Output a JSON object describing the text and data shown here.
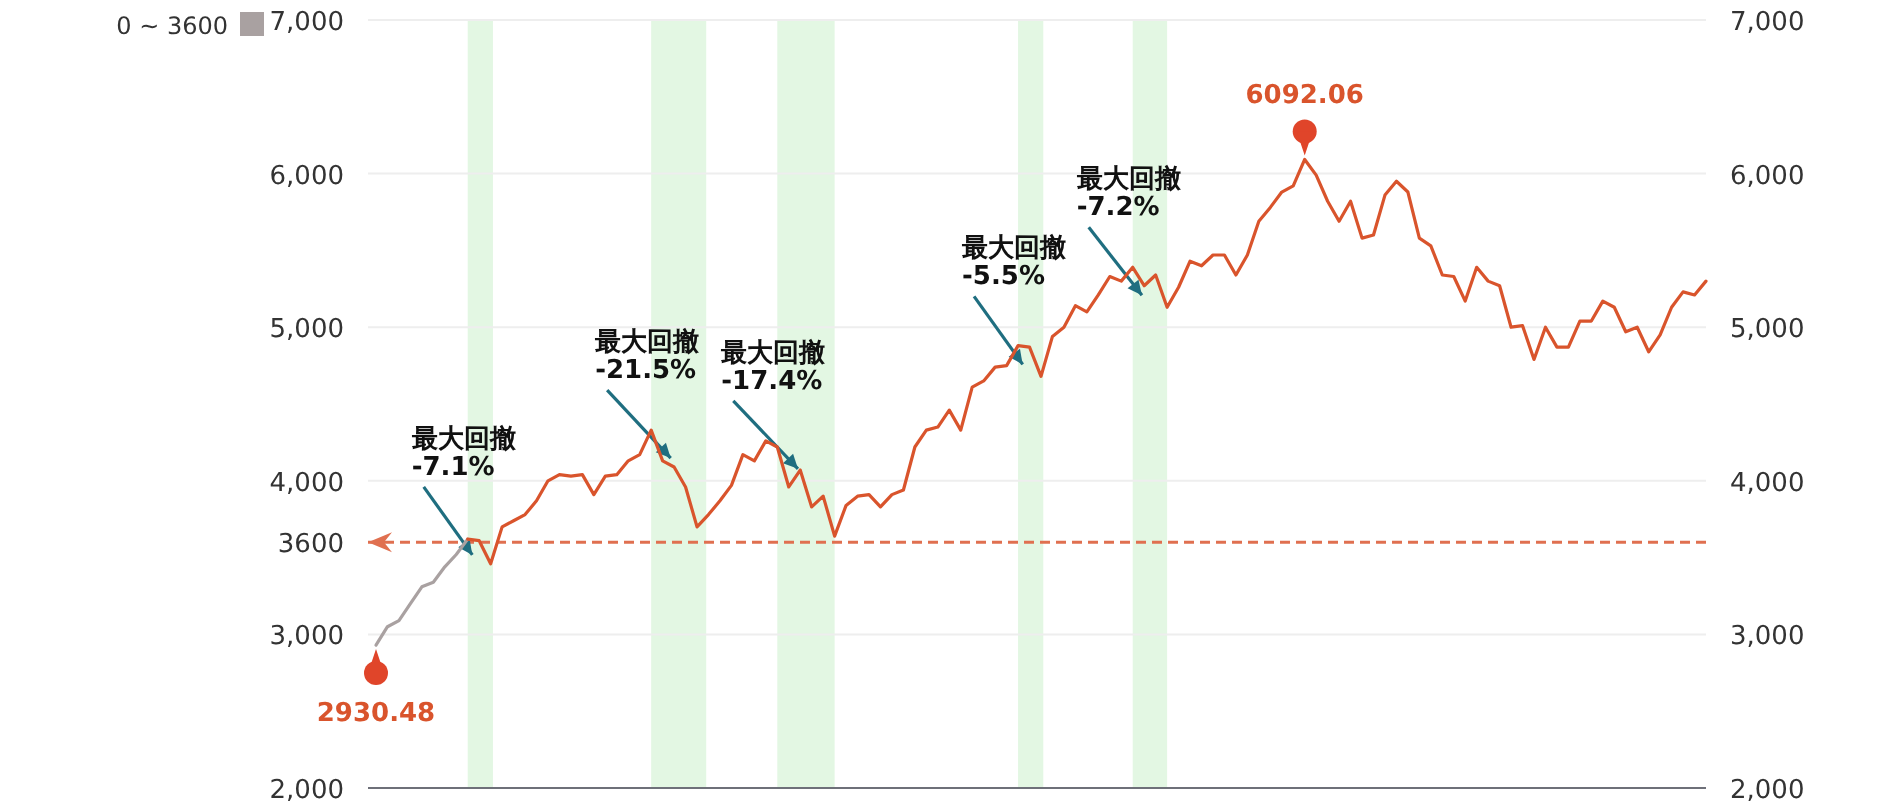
{
  "chart_data": {
    "type": "line",
    "categories": [
      null,
      null,
      null,
      null,
      null,
      null,
      null,
      null,
      null,
      null,
      null,
      null,
      null,
      null,
      null,
      null,
      null,
      null,
      null,
      null,
      null,
      null,
      null,
      null,
      null,
      null,
      null,
      null,
      null,
      null,
      null,
      null,
      null,
      null,
      null,
      null,
      null,
      null,
      null,
      null,
      null,
      null,
      null,
      null,
      null,
      null,
      null,
      null,
      null,
      null,
      null,
      null,
      null,
      null,
      null,
      null,
      null,
      null,
      null,
      null,
      null,
      null,
      null,
      null,
      null,
      null,
      null,
      null,
      null,
      null,
      null,
      null,
      null,
      null,
      null,
      null,
      null,
      null,
      null,
      null,
      null,
      null,
      null,
      null,
      null,
      null,
      null,
      null,
      null,
      null,
      null,
      null,
      null,
      null,
      null,
      null,
      null,
      null,
      null,
      null,
      null,
      null,
      null,
      null,
      null,
      null,
      null,
      null,
      null,
      null,
      null,
      null,
      null,
      null,
      null,
      null,
      null
    ],
    "series": [
      {
        "name": "0 ~ 3600",
        "color": "#a9a1a1",
        "values": [
          2930.48,
          3050,
          3090,
          3200,
          3310,
          3340,
          3440,
          3520,
          3620,
          null,
          null,
          null,
          null,
          null,
          null,
          null,
          null,
          null,
          null,
          null,
          null,
          null,
          null,
          null,
          null,
          null,
          null,
          null,
          null,
          null,
          null,
          null,
          null,
          null,
          null,
          null,
          null,
          null,
          null,
          null,
          null,
          null,
          null,
          null,
          null,
          null,
          null,
          null,
          null,
          null,
          null,
          null,
          null,
          null,
          null,
          null,
          null,
          null,
          null,
          null,
          null,
          null,
          null,
          null,
          null,
          null,
          null,
          null,
          null,
          null,
          null,
          null,
          null,
          null,
          null,
          null,
          null,
          null,
          null,
          null,
          null,
          null,
          null,
          null,
          null,
          null,
          null,
          null,
          null,
          null,
          null,
          null,
          null,
          null,
          null,
          null,
          null,
          null,
          null,
          null,
          null,
          null,
          null,
          null,
          null,
          null,
          null,
          null,
          null,
          null,
          null,
          null,
          null,
          null,
          null,
          null,
          null
        ],
        "value_labels": [
          "2930.48",
          null,
          null,
          null,
          null,
          null,
          null,
          null,
          null,
          null,
          null,
          null,
          null,
          null,
          null,
          null,
          null,
          null,
          null,
          null,
          null,
          null,
          null,
          null,
          null,
          null,
          null,
          null,
          null,
          null,
          null,
          null,
          null,
          null,
          null,
          null,
          null,
          null,
          null,
          null,
          null,
          null,
          null,
          null,
          null,
          null,
          null,
          null,
          null,
          null,
          null,
          null,
          null,
          null,
          null,
          null,
          null,
          null,
          null,
          null,
          null,
          null,
          null,
          null,
          null,
          null,
          null,
          null,
          null,
          null,
          null,
          null,
          null,
          null,
          null,
          null,
          null,
          null,
          null,
          null,
          null,
          null,
          null,
          null,
          null,
          null,
          null,
          null,
          null,
          null,
          null,
          null,
          null,
          null,
          null,
          null,
          null,
          null,
          null,
          null,
          null,
          null,
          null,
          null,
          null,
          null,
          null,
          null,
          null,
          null,
          null,
          null,
          null,
          null,
          null,
          null,
          null
        ]
      },
      {
        "color": "#d9542c",
        "values": [
          null,
          null,
          null,
          null,
          null,
          null,
          null,
          null,
          3620,
          3610,
          3460,
          3700,
          3740,
          3780,
          3870,
          4000,
          4040,
          4030,
          4040,
          3910,
          4030,
          4040,
          4130,
          4170,
          4330,
          4130,
          4090,
          3960,
          3700,
          3780,
          3870,
          3970,
          4170,
          4130,
          4260,
          4220,
          3960,
          4070,
          3830,
          3900,
          3640,
          3840,
          3900,
          3910,
          3830,
          3910,
          3940,
          4220,
          4330,
          4350,
          4460,
          4330,
          4610,
          4650,
          4740,
          4750,
          4880,
          4870,
          4680,
          4940,
          5000,
          5140,
          5100,
          5210,
          5330,
          5300,
          5390,
          5270,
          5340,
          5130,
          5260,
          5430,
          5400,
          5470,
          5470,
          5340,
          5470,
          5690,
          5780,
          5880,
          5920,
          6092.06,
          5990,
          5820,
          5690,
          5820,
          5580,
          5600,
          5860,
          5950,
          5880,
          5580,
          5530,
          5340,
          5330,
          5170,
          5390,
          5300,
          5270,
          5000,
          5010,
          4790,
          5000,
          4870,
          4870,
          5040,
          5040,
          5170,
          5130,
          4970,
          5000,
          4840,
          4950,
          5130,
          5230,
          5210,
          5300
        ],
        "value_labels": [
          null,
          null,
          null,
          null,
          null,
          null,
          null,
          null,
          null,
          null,
          null,
          null,
          null,
          null,
          null,
          null,
          null,
          null,
          null,
          null,
          null,
          null,
          null,
          null,
          null,
          null,
          null,
          null,
          null,
          null,
          null,
          null,
          null,
          null,
          null,
          null,
          null,
          null,
          null,
          null,
          null,
          null,
          null,
          null,
          null,
          null,
          null,
          null,
          null,
          null,
          null,
          null,
          null,
          null,
          null,
          null,
          null,
          null,
          null,
          null,
          null,
          null,
          null,
          null,
          null,
          null,
          null,
          null,
          null,
          null,
          null,
          null,
          null,
          null,
          null,
          null,
          null,
          null,
          null,
          null,
          null,
          "6092.06",
          null,
          null,
          null,
          null,
          null,
          null,
          null,
          null,
          null,
          null,
          null,
          null,
          null,
          null,
          null,
          null,
          null,
          null,
          null,
          null,
          null,
          null,
          null,
          null,
          null,
          null,
          null,
          null,
          null,
          null,
          null,
          null,
          null,
          null,
          null
        ]
      }
    ],
    "ylim": [
      2000,
      7000
    ],
    "yticks": [
      {
        "value": 2000,
        "label": "2,000"
      },
      {
        "value": 3000,
        "label": "3,000"
      },
      {
        "value": 4000,
        "label": "4,000"
      },
      {
        "value": 5000,
        "label": "5,000"
      },
      {
        "value": 6000,
        "label": "6,000"
      },
      {
        "value": 7000,
        "label": "7,000"
      }
    ],
    "y2lim": [
      2000,
      7000
    ],
    "y2ticks": [
      {
        "value": 2000,
        "label": "2,000"
      },
      {
        "value": 3000,
        "label": "3,000"
      },
      {
        "value": 4000,
        "label": "4,000"
      },
      {
        "value": 5000,
        "label": "5,000"
      },
      {
        "value": 6000,
        "label": "6,000"
      },
      {
        "value": 7000,
        "label": "7,000"
      }
    ],
    "ref_lines": [
      {
        "axis": "y",
        "value": 3600,
        "label": "3600",
        "color": "#e07050",
        "line_style": "dashed"
      }
    ],
    "annotations": [
      "最大回撤 -7.1%",
      "最大回撤 -21.5%",
      "最大回撤 -17.4%",
      "最大回撤 -5.5%",
      "最大回撤 -7.2%"
    ],
    "grid": "y",
    "legend": "top left"
  }
}
